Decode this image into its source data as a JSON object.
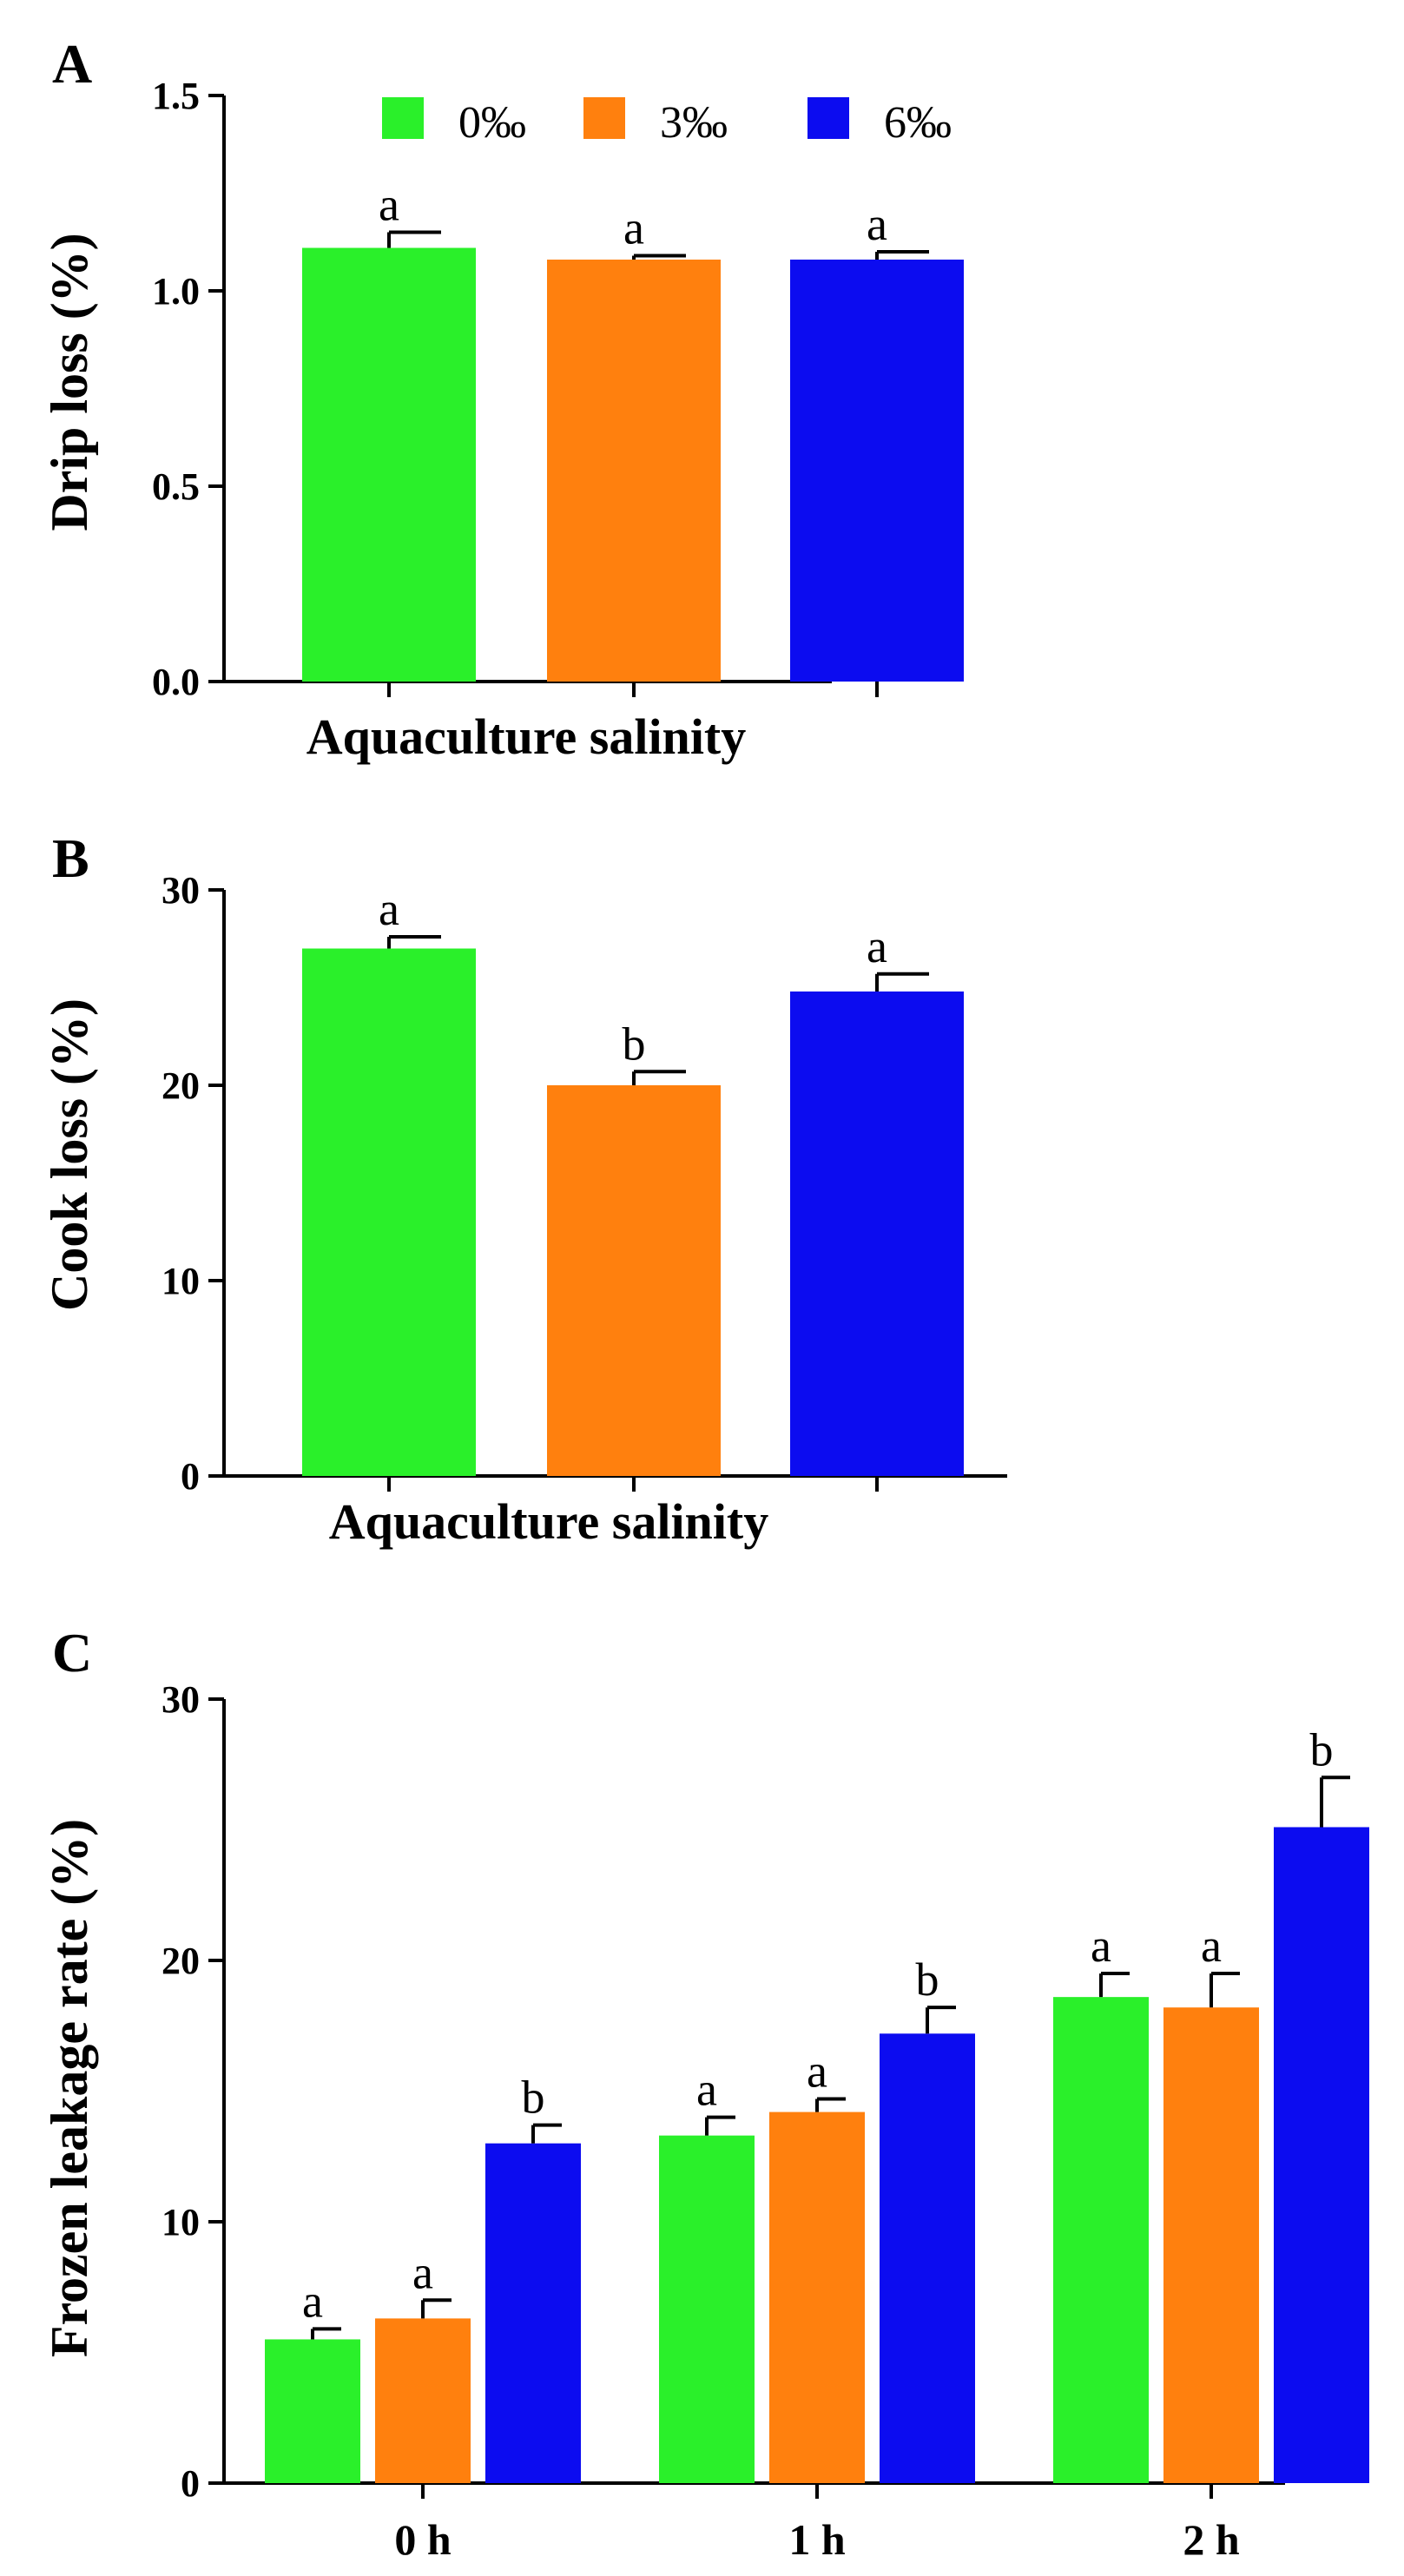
{
  "colors": {
    "s0": "#2af02a",
    "s3": "#ff800e",
    "s6": "#0c0cf0"
  },
  "legend": [
    {
      "label": "0‰",
      "color": "#2af02a"
    },
    {
      "label": "3‰",
      "color": "#ff800e"
    },
    {
      "label": "6‰",
      "color": "#0c0cf0"
    }
  ],
  "chart_data": [
    {
      "panel": "A",
      "type": "bar",
      "xlabel": "Aquaculture salinity",
      "ylabel": "Drip loss (%)",
      "ylim": [
        0,
        1.5
      ],
      "yticks": [
        "0.0",
        "0.5",
        "1.0",
        "1.5"
      ],
      "series": [
        {
          "name": "0‰",
          "value": 1.11,
          "error": 0.04,
          "sig": "a"
        },
        {
          "name": "3‰",
          "value": 1.08,
          "error": 0.01,
          "sig": "a"
        },
        {
          "name": "6‰",
          "value": 1.08,
          "error": 0.02,
          "sig": "a"
        }
      ]
    },
    {
      "panel": "B",
      "type": "bar",
      "xlabel": "Aquaculture salinity",
      "ylabel": "Cook  loss (%)",
      "ylim": [
        0,
        30
      ],
      "yticks": [
        "0",
        "10",
        "20",
        "30"
      ],
      "series": [
        {
          "name": "0‰",
          "value": 27.0,
          "error": 0.6,
          "sig": "a"
        },
        {
          "name": "3‰",
          "value": 20.0,
          "error": 0.7,
          "sig": "b"
        },
        {
          "name": "6‰",
          "value": 24.8,
          "error": 0.9,
          "sig": "a"
        }
      ]
    },
    {
      "panel": "C",
      "type": "bar",
      "xlabel": "",
      "ylabel": "Frozen leakage rate (%)",
      "ylim": [
        0,
        30
      ],
      "yticks": [
        "0",
        "10",
        "20",
        "30"
      ],
      "categories": [
        "0 h",
        "1 h",
        "2 h"
      ],
      "series": [
        {
          "name": "0‰",
          "values": [
            5.5,
            13.3,
            18.6
          ],
          "errors": [
            0.4,
            0.7,
            0.9
          ],
          "sig": [
            "a",
            "a",
            "a"
          ]
        },
        {
          "name": "3‰",
          "values": [
            6.3,
            14.2,
            18.2
          ],
          "errors": [
            0.7,
            0.5,
            1.3
          ],
          "sig": [
            "a",
            "a",
            "a"
          ]
        },
        {
          "name": "6‰",
          "values": [
            13.0,
            17.2,
            25.1
          ],
          "errors": [
            0.7,
            1.0,
            1.9
          ],
          "sig": [
            "b",
            "b",
            "b"
          ]
        }
      ]
    }
  ]
}
